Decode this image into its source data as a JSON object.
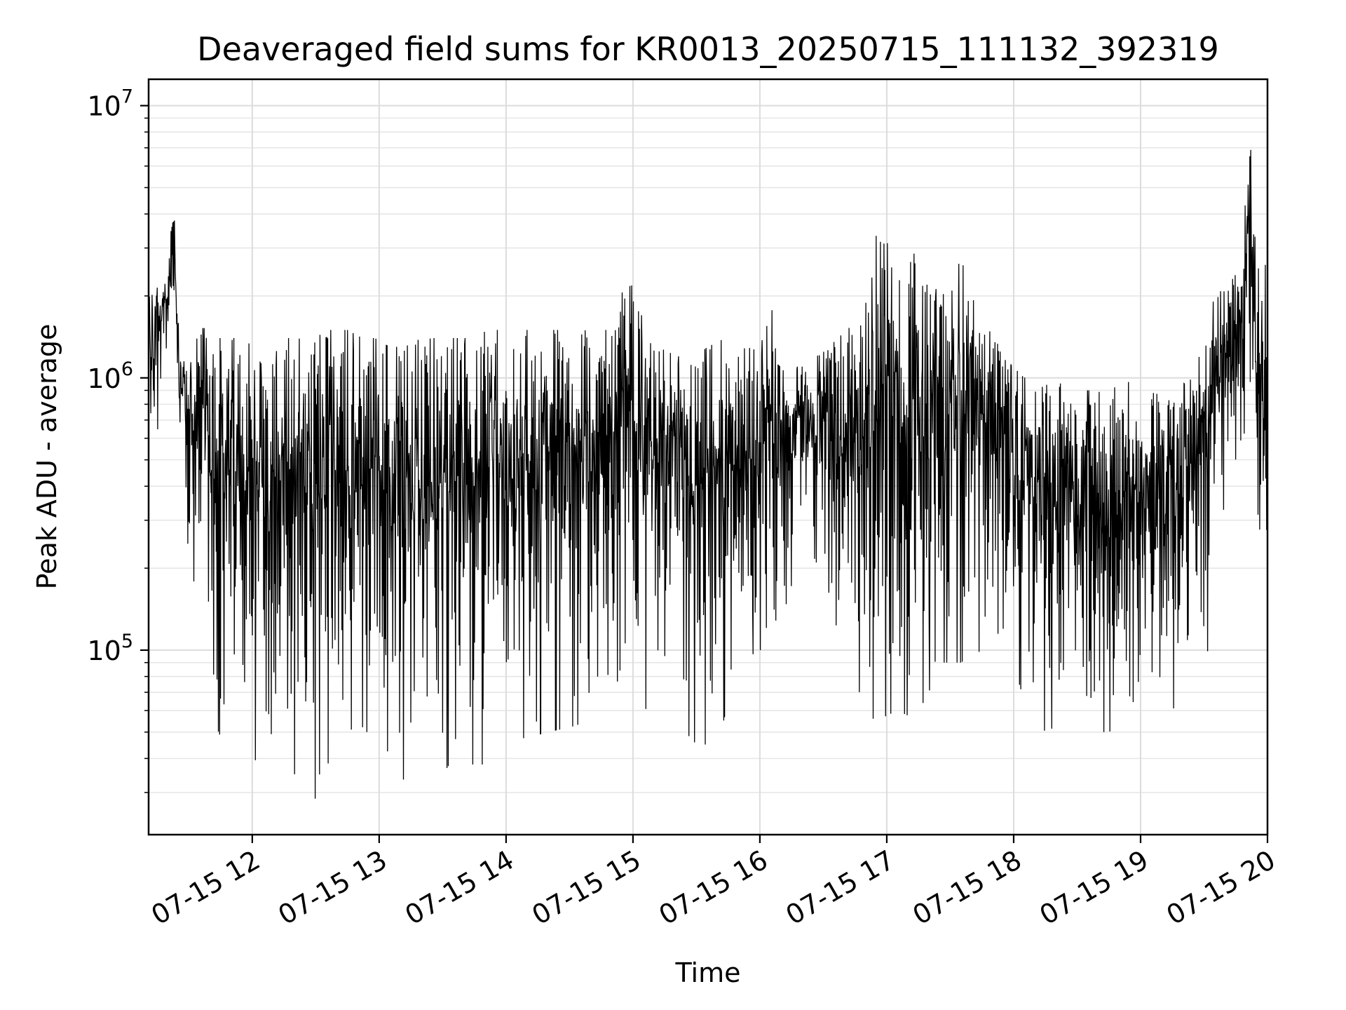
{
  "chart_data": {
    "type": "line",
    "title": "Deaveraged field sums for KR0013_20250715_111132_392319",
    "xlabel": "Time",
    "ylabel": "Peak ADU - average",
    "yscale": "log",
    "ylim": [
      21000,
      12500000
    ],
    "xlim": [
      "2025-07-15 11:11",
      "2025-07-15 20:00"
    ],
    "grid": true,
    "line_color": "#000000",
    "x_tick_labels": [
      "07-15 12",
      "07-15 13",
      "07-15 14",
      "07-15 15",
      "07-15 16",
      "07-15 17",
      "07-15 18",
      "07-15 19",
      "07-15 20"
    ],
    "y_tick_labels": [
      {
        "base": "10",
        "exp": "5",
        "value": 100000
      },
      {
        "base": "10",
        "exp": "6",
        "value": 1000000
      },
      {
        "base": "10",
        "exp": "7",
        "value": 10000000
      }
    ],
    "series": [
      {
        "x": [
          "2025-07-15 11:11",
          "2025-07-15 11:14",
          "2025-07-15 11:17",
          "2025-07-15 11:20",
          "2025-07-15 11:23",
          "2025-07-15 11:26",
          "2025-07-15 11:29",
          "2025-07-15 11:32",
          "2025-07-15 11:35",
          "2025-07-15 11:38",
          "2025-07-15 11:41",
          "2025-07-15 11:44",
          "2025-07-15 11:47",
          "2025-07-15 11:50",
          "2025-07-15 11:53",
          "2025-07-15 11:56",
          "2025-07-15 12:00",
          "2025-07-15 12:05",
          "2025-07-15 12:10",
          "2025-07-15 12:15",
          "2025-07-15 12:20",
          "2025-07-15 12:25",
          "2025-07-15 12:30",
          "2025-07-15 12:35",
          "2025-07-15 12:40",
          "2025-07-15 12:45",
          "2025-07-15 12:52",
          "2025-07-15 12:58",
          "2025-07-15 13:05",
          "2025-07-15 13:12",
          "2025-07-15 13:20",
          "2025-07-15 13:28",
          "2025-07-15 13:35",
          "2025-07-15 13:42",
          "2025-07-15 13:50",
          "2025-07-15 14:00",
          "2025-07-15 14:10",
          "2025-07-15 14:20",
          "2025-07-15 14:30",
          "2025-07-15 14:40",
          "2025-07-15 14:50",
          "2025-07-15 15:00",
          "2025-07-15 15:05",
          "2025-07-15 15:12",
          "2025-07-15 15:20",
          "2025-07-15 15:30",
          "2025-07-15 15:40",
          "2025-07-15 15:50",
          "2025-07-15 16:00",
          "2025-07-15 16:06",
          "2025-07-15 16:12",
          "2025-07-15 16:20",
          "2025-07-15 16:30",
          "2025-07-15 16:40",
          "2025-07-15 16:48",
          "2025-07-15 16:55",
          "2025-07-15 17:05",
          "2025-07-15 17:15",
          "2025-07-15 17:25",
          "2025-07-15 17:35",
          "2025-07-15 17:45",
          "2025-07-15 17:55",
          "2025-07-15 18:05",
          "2025-07-15 18:15",
          "2025-07-15 18:25",
          "2025-07-15 18:35",
          "2025-07-15 18:45",
          "2025-07-15 18:55",
          "2025-07-15 19:05",
          "2025-07-15 19:15",
          "2025-07-15 19:25",
          "2025-07-15 19:32",
          "2025-07-15 19:38",
          "2025-07-15 19:44",
          "2025-07-15 19:48",
          "2025-07-15 19:52",
          "2025-07-15 19:56",
          "2025-07-15 20:00"
        ],
        "y_high": [
          2200000,
          2900000,
          2000000,
          2400000,
          4800000,
          1400000,
          1300000,
          1500000,
          1600000,
          1500000,
          1500000,
          1400000,
          1400000,
          1400000,
          1400000,
          1400000,
          1300000,
          1100000,
          1200000,
          1400000,
          1400000,
          1400000,
          1400000,
          1500000,
          1500000,
          1500000,
          1400000,
          1400000,
          1300000,
          1300000,
          1400000,
          1400000,
          1400000,
          1400000,
          1500000,
          1500000,
          1500000,
          1500000,
          1500000,
          1500000,
          1500000,
          2900000,
          1500000,
          1500000,
          1200000,
          1200000,
          1400000,
          1300000,
          1300000,
          1800000,
          1100000,
          1100000,
          1300000,
          1500000,
          1600000,
          3400000,
          3100000,
          2800000,
          2000000,
          2700000,
          2000000,
          1200000,
          1000000,
          1100000,
          900000,
          900000,
          900000,
          1000000,
          900000,
          900000,
          1000000,
          1600000,
          2500000,
          2300000,
          2800000,
          9400000,
          2500000,
          2900000
        ],
        "y_low": [
          380000,
          400000,
          1100000,
          1300000,
          1300000,
          320000,
          200000,
          160000,
          220000,
          150000,
          80000,
          50000,
          45000,
          42000,
          40000,
          38000,
          40000,
          38000,
          37000,
          36000,
          35000,
          40000,
          28000,
          38000,
          40000,
          34000,
          45000,
          60000,
          40000,
          33000,
          30000,
          33000,
          40000,
          38000,
          38000,
          45000,
          48000,
          50000,
          52000,
          55000,
          55000,
          50000,
          60000,
          65000,
          55000,
          45000,
          45000,
          90000,
          100000,
          100000,
          110000,
          200000,
          200000,
          90000,
          60000,
          55000,
          60000,
          55000,
          90000,
          90000,
          100000,
          120000,
          65000,
          50000,
          55000,
          50000,
          50000,
          55000,
          55000,
          60000,
          80000,
          100000,
          250000,
          300000,
          400000,
          500000,
          90000,
          200000
        ]
      }
    ]
  }
}
